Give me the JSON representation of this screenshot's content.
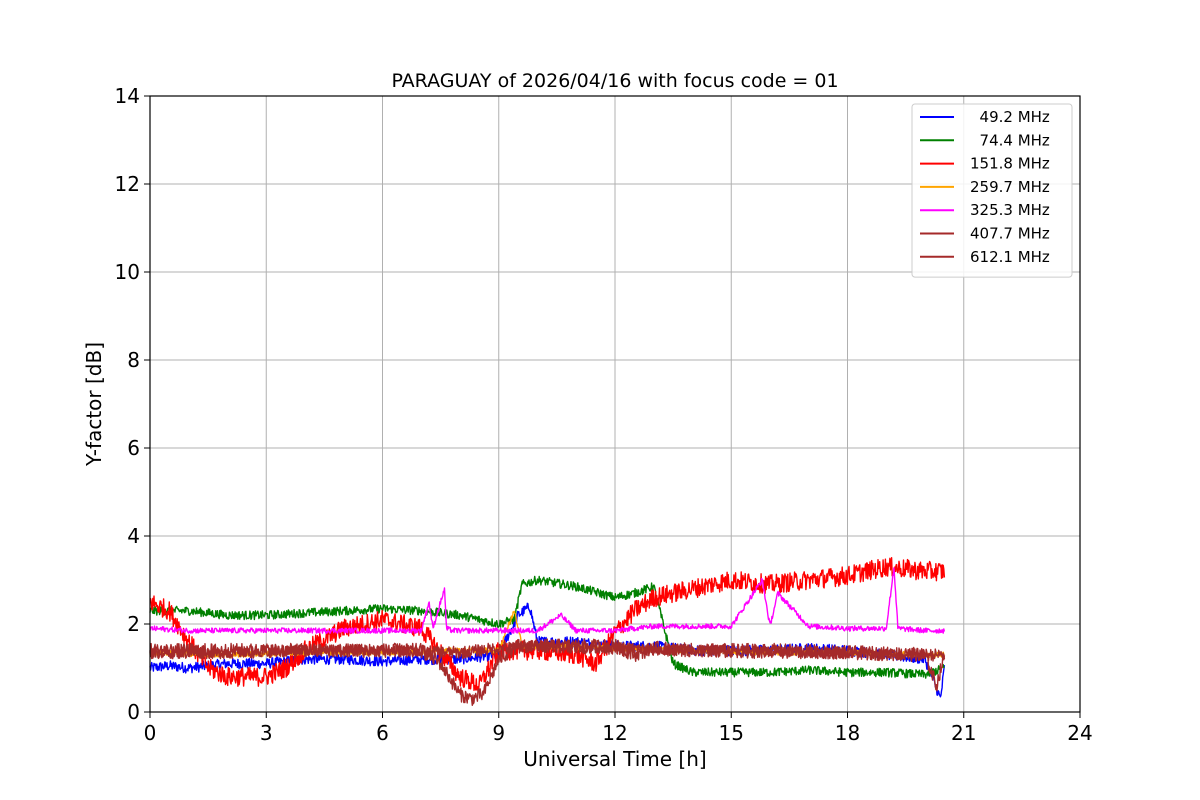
{
  "chart_data": {
    "type": "line",
    "title": "PARAGUAY of 2026/04/16 with focus code = 01",
    "xlabel": "Universal Time [h]",
    "ylabel": "Y-factor [dB]",
    "xlim": [
      0,
      24
    ],
    "ylim": [
      0,
      14
    ],
    "xticks": [
      0,
      3,
      6,
      9,
      12,
      15,
      18,
      21,
      24
    ],
    "yticks": [
      0,
      2,
      4,
      6,
      8,
      10,
      12,
      14
    ],
    "grid": true,
    "legend_position": "top-right",
    "series": [
      {
        "name": "  49.2 MHz",
        "color": "#0000ff",
        "x": [
          0,
          0.5,
          1,
          2,
          3,
          4,
          5,
          6,
          7,
          8,
          9,
          9.5,
          9.8,
          10,
          10.5,
          11,
          12,
          13,
          14,
          15,
          16,
          17,
          18,
          19,
          20,
          20.4,
          20.5
        ],
        "y": [
          1.0,
          1.05,
          1.0,
          1.1,
          1.1,
          1.2,
          1.2,
          1.15,
          1.2,
          1.2,
          1.3,
          2.2,
          2.4,
          1.6,
          1.6,
          1.6,
          1.5,
          1.5,
          1.4,
          1.4,
          1.4,
          1.45,
          1.4,
          1.3,
          1.2,
          0.3,
          1.0
        ],
        "noise": 0.12
      },
      {
        "name": "  74.4 MHz",
        "color": "#008000",
        "x": [
          0,
          0.5,
          1,
          1.5,
          2,
          3,
          4,
          5,
          6,
          7,
          8,
          9,
          9.4,
          9.6,
          10,
          11,
          12,
          12.5,
          13,
          13.5,
          14,
          15,
          16,
          17,
          18,
          19,
          20,
          20.5
        ],
        "y": [
          2.3,
          2.3,
          2.3,
          2.25,
          2.2,
          2.2,
          2.25,
          2.3,
          2.35,
          2.3,
          2.2,
          2.0,
          2.1,
          2.9,
          3.0,
          2.85,
          2.6,
          2.7,
          2.85,
          1.1,
          0.9,
          0.9,
          0.9,
          0.95,
          0.9,
          0.9,
          0.85,
          1.0
        ],
        "noise": 0.1
      },
      {
        "name": "151.8 MHz",
        "color": "#ff0000",
        "x": [
          0,
          0.5,
          1,
          1.5,
          2,
          3,
          3.5,
          4,
          5,
          6,
          7,
          8,
          8.5,
          9,
          10,
          11,
          11.5,
          12,
          12.5,
          13,
          14,
          15,
          16,
          17,
          18,
          19,
          20,
          20.5
        ],
        "y": [
          2.5,
          2.3,
          1.6,
          1.0,
          0.8,
          0.8,
          1.0,
          1.4,
          1.9,
          2.1,
          1.9,
          0.8,
          0.6,
          1.4,
          1.4,
          1.3,
          1.1,
          1.8,
          2.3,
          2.6,
          2.8,
          3.0,
          2.9,
          3.0,
          3.1,
          3.3,
          3.2,
          3.2
        ],
        "noise": 0.22
      },
      {
        "name": "259.7 MHz",
        "color": "#ffa500",
        "x": [
          0,
          2,
          4,
          6,
          8,
          9,
          9.4,
          9.6,
          10,
          12,
          14,
          16,
          18,
          20,
          20.5
        ],
        "y": [
          1.35,
          1.3,
          1.35,
          1.35,
          1.4,
          1.4,
          2.3,
          1.5,
          1.5,
          1.45,
          1.4,
          1.35,
          1.35,
          1.3,
          1.3
        ],
        "noise": 0.06
      },
      {
        "name": "325.3 MHz",
        "color": "#ff00ff",
        "x": [
          0,
          1,
          2,
          3,
          4,
          5,
          6,
          7,
          7.2,
          7.3,
          7.6,
          7.65,
          7.8,
          8,
          9,
          10,
          10.6,
          11,
          12,
          13,
          14,
          15,
          15.8,
          16,
          16.2,
          17,
          18,
          19,
          19.2,
          19.3,
          20,
          20.5
        ],
        "y": [
          1.9,
          1.85,
          1.85,
          1.85,
          1.85,
          1.85,
          1.85,
          1.85,
          2.5,
          1.9,
          2.8,
          1.9,
          1.85,
          1.85,
          1.85,
          1.85,
          2.2,
          1.85,
          1.85,
          1.95,
          1.95,
          1.95,
          3.0,
          1.95,
          2.7,
          1.95,
          1.9,
          1.9,
          3.3,
          1.9,
          1.85,
          1.85
        ],
        "noise": 0.06
      },
      {
        "name": "407.7 MHz",
        "color": "#a52a2a",
        "x": [
          0,
          2,
          4,
          6,
          7,
          7.5,
          8,
          8.3,
          8.6,
          9,
          9.5,
          10,
          11,
          12,
          12.5,
          13,
          14,
          16,
          18,
          20,
          20.3,
          20.5
        ],
        "y": [
          1.4,
          1.4,
          1.4,
          1.4,
          1.4,
          1.1,
          0.4,
          0.3,
          0.4,
          1.2,
          1.5,
          1.5,
          1.5,
          1.5,
          1.3,
          1.45,
          1.4,
          1.4,
          1.35,
          1.3,
          0.6,
          1.3
        ],
        "noise": 0.16
      },
      {
        "name": "612.1 MHz",
        "color": "#a52a2a",
        "x": [
          0,
          2,
          4,
          6,
          8,
          9,
          10,
          12,
          14,
          16,
          18,
          20,
          20.5
        ],
        "y": [
          1.35,
          1.35,
          1.4,
          1.4,
          1.35,
          1.45,
          1.5,
          1.45,
          1.4,
          1.35,
          1.35,
          1.3,
          1.3
        ],
        "noise": 0.14
      }
    ]
  }
}
